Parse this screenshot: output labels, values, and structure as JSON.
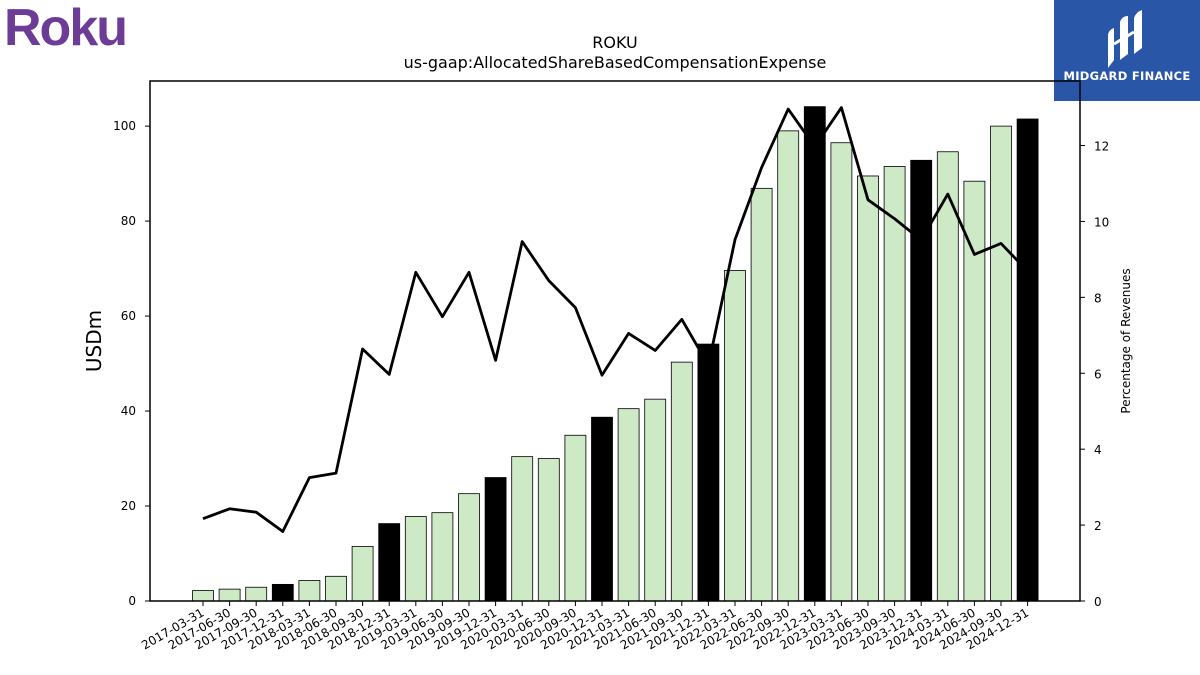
{
  "logos": {
    "left_text": "Roku",
    "left_color": "#6c3c97",
    "right_text": "MIDGARD FINANCE",
    "right_bg": "#2a56a8"
  },
  "chart_data": {
    "type": "bar",
    "title": "ROKU",
    "subtitle": "us-gaap:AllocatedShareBasedCompensationExpense",
    "ylabel": "USDm",
    "y2label": "Percentage of Revenues",
    "ylim": [
      0,
      109.5
    ],
    "y2lim": [
      0,
      13.7
    ],
    "yticks": [
      0,
      20,
      40,
      60,
      80,
      100
    ],
    "y2ticks": [
      0,
      2,
      4,
      6,
      8,
      10,
      12
    ],
    "grid": false,
    "colors": {
      "bar": "#cde9c6",
      "bar_highlight": "#000000",
      "line": "#000000",
      "bar_edge": "#000000"
    },
    "categories": [
      "2017-03-31",
      "2017-06-30",
      "2017-09-30",
      "2017-12-31",
      "2018-03-31",
      "2018-06-30",
      "2018-09-30",
      "2018-12-31",
      "2019-03-31",
      "2019-06-30",
      "2019-09-30",
      "2019-12-31",
      "2020-03-31",
      "2020-06-30",
      "2020-09-30",
      "2020-12-31",
      "2021-03-31",
      "2021-06-30",
      "2021-09-30",
      "2021-12-31",
      "2022-03-31",
      "2022-06-30",
      "2022-09-30",
      "2022-12-31",
      "2023-03-31",
      "2023-06-30",
      "2023-09-30",
      "2023-12-31",
      "2024-03-31",
      "2024-06-30",
      "2024-09-30",
      "2024-12-31"
    ],
    "values": [
      2.2,
      2.5,
      2.9,
      3.5,
      4.3,
      5.2,
      11.5,
      16.3,
      17.8,
      18.6,
      22.6,
      26.0,
      30.4,
      30.0,
      34.9,
      38.7,
      40.5,
      42.5,
      50.3,
      54.1,
      69.6,
      86.9,
      99.0,
      104.1,
      96.5,
      89.5,
      91.5,
      92.8,
      94.6,
      88.4,
      100.0,
      101.5
    ],
    "highlight": [
      false,
      false,
      false,
      true,
      false,
      false,
      false,
      true,
      false,
      false,
      false,
      true,
      false,
      false,
      false,
      true,
      false,
      false,
      false,
      true,
      false,
      false,
      false,
      true,
      false,
      false,
      false,
      true,
      false,
      false,
      false,
      true
    ],
    "line_series": {
      "name": "",
      "values": [
        2.17,
        2.43,
        2.34,
        1.83,
        3.25,
        3.37,
        6.64,
        5.97,
        8.66,
        7.49,
        8.66,
        6.34,
        9.47,
        8.44,
        7.73,
        5.95,
        7.05,
        6.6,
        7.42,
        6.21,
        9.52,
        11.42,
        12.96,
        11.97,
        13.0,
        10.57,
        10.07,
        9.51,
        10.72,
        9.13,
        9.42,
        8.69
      ]
    }
  }
}
